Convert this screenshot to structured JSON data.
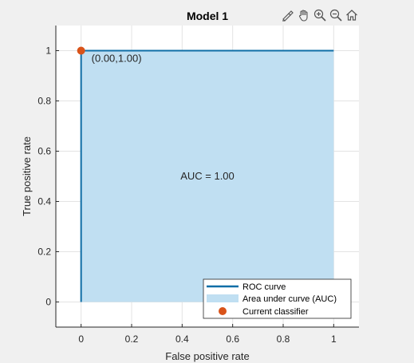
{
  "toolbar": {
    "icons": [
      "brush-icon",
      "pan-hand-icon",
      "zoom-in-icon",
      "zoom-out-icon",
      "home-icon"
    ]
  },
  "colors": {
    "roc": "#0f6ea6",
    "auc_fill": "#c0dff2",
    "classifier": "#d95319",
    "axes_bg": "#ffffff",
    "figure_bg": "#f0f0f0"
  },
  "chart_data": {
    "type": "area",
    "title": "Model 1",
    "xlabel": "False positive rate",
    "ylabel": "True positive rate",
    "xlim": [
      -0.1,
      1.1
    ],
    "ylim": [
      -0.1,
      1.1
    ],
    "xticks": [
      0,
      0.2,
      0.4,
      0.6,
      0.8,
      1
    ],
    "yticks": [
      0,
      0.2,
      0.4,
      0.6,
      0.8,
      1
    ],
    "xtick_labels": [
      "0",
      "0.2",
      "0.4",
      "0.6",
      "0.8",
      "1"
    ],
    "ytick_labels": [
      "0",
      "0.2",
      "0.4",
      "0.6",
      "0.8",
      "1"
    ],
    "grid": true,
    "series": [
      {
        "name": "ROC curve",
        "x": [
          0,
          0,
          1
        ],
        "y": [
          0,
          1,
          1
        ]
      }
    ],
    "area": {
      "name": "Area under curve (AUC)",
      "x": [
        0,
        0,
        1,
        1
      ],
      "y": [
        0,
        1,
        1,
        0
      ]
    },
    "current_classifier": {
      "name": "Current classifier",
      "x": 0,
      "y": 1,
      "label": "(0.00,1.00)"
    },
    "annotation": "AUC = 1.00",
    "annotation_pos": [
      0.5,
      0.5
    ],
    "legend_placement": "bottom-right"
  }
}
